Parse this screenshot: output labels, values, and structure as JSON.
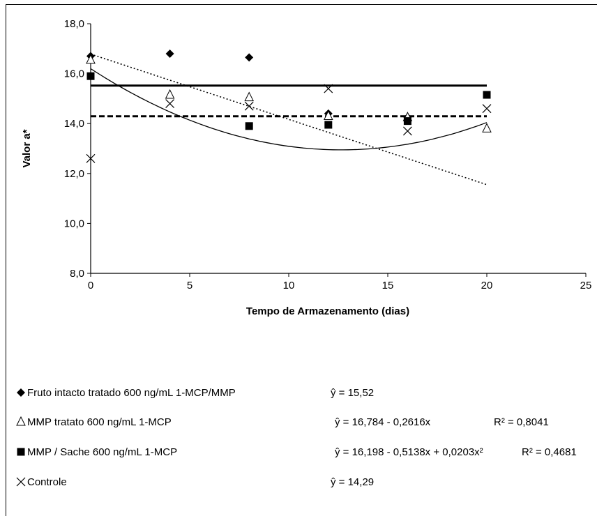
{
  "chart_data": {
    "type": "scatter",
    "xlabel": "Tempo de Armazenamento (dias)",
    "ylabel": "Valor a*",
    "xlim": [
      0,
      25
    ],
    "ylim": [
      8,
      18
    ],
    "x_ticks": [
      "0",
      "5",
      "10",
      "15",
      "20",
      "25"
    ],
    "y_ticks": [
      "8,0",
      "10,0",
      "12,0",
      "14,0",
      "16,0",
      "18,0"
    ],
    "grid": false,
    "legend_position": "bottom",
    "series": [
      {
        "name": "Fruto intacto tratado 600 ng/mL 1-MCP/MMP",
        "marker": "diamond",
        "x": [
          0,
          4,
          8,
          12,
          16
        ],
        "y": [
          16.7,
          16.8,
          16.65,
          14.4,
          14.25
        ],
        "fit_type": "constant",
        "fit_coeffs": [
          15.52
        ],
        "fit_range": [
          0,
          20
        ],
        "fit_style": "solid-thick",
        "equation": "ŷ = 15,52",
        "r2": ""
      },
      {
        "name": "MMP tratato 600 ng/mL 1-MCP",
        "marker": "triangle",
        "x": [
          0,
          4,
          8,
          12,
          16,
          20
        ],
        "y": [
          16.55,
          15.15,
          15.05,
          14.3,
          14.25,
          13.8
        ],
        "fit_type": "polynomial",
        "fit_coeffs": [
          16.784,
          -0.2616
        ],
        "fit_range": [
          0,
          20
        ],
        "fit_style": "dotted",
        "equation": "ŷ = 16,784 - 0,2616x",
        "r2": "R² = 0,8041"
      },
      {
        "name": "MMP / Sache 600 ng/mL 1-MCP",
        "marker": "square",
        "x": [
          0,
          8,
          12,
          16,
          20
        ],
        "y": [
          15.9,
          13.9,
          13.95,
          14.1,
          15.15
        ],
        "fit_type": "polynomial",
        "fit_coeffs": [
          16.198,
          -0.5138,
          0.0203
        ],
        "fit_range": [
          0,
          20
        ],
        "fit_style": "solid-thin",
        "equation": "ŷ = 16,198 - 0,5138x + 0,0203x² ",
        "r2": "R² = 0,4681"
      },
      {
        "name": "Controle",
        "marker": "x",
        "x": [
          0,
          4,
          8,
          12,
          16,
          20
        ],
        "y": [
          12.6,
          14.8,
          14.7,
          15.4,
          13.7,
          14.6
        ],
        "fit_type": "constant",
        "fit_coeffs": [
          14.29
        ],
        "fit_range": [
          0,
          20
        ],
        "fit_style": "dashed-thick",
        "equation": "ŷ = 14,29",
        "r2": ""
      }
    ]
  }
}
